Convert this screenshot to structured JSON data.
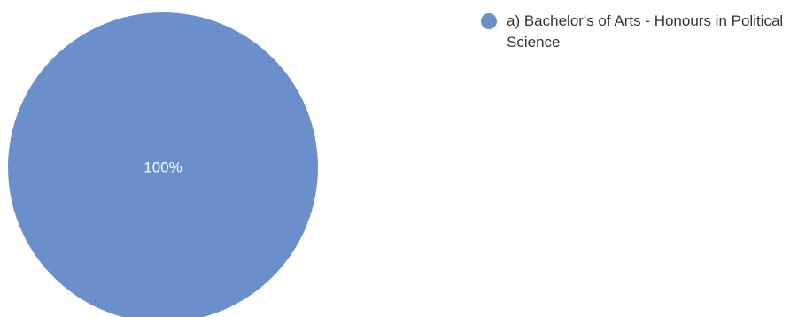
{
  "chart_data": {
    "type": "pie",
    "categories": [
      "a) Bachelor's of Arts - Honours in Political Science"
    ],
    "values": [
      100
    ],
    "data_labels": [
      "100%"
    ],
    "colors": [
      "#6a8fca"
    ],
    "legend_position": "top-right"
  },
  "legend": {
    "items": [
      {
        "label": "a) Bachelor's of Arts - Honours in Political Science",
        "color": "#6a8fca"
      }
    ]
  },
  "slice_label_color": "#ffffff"
}
